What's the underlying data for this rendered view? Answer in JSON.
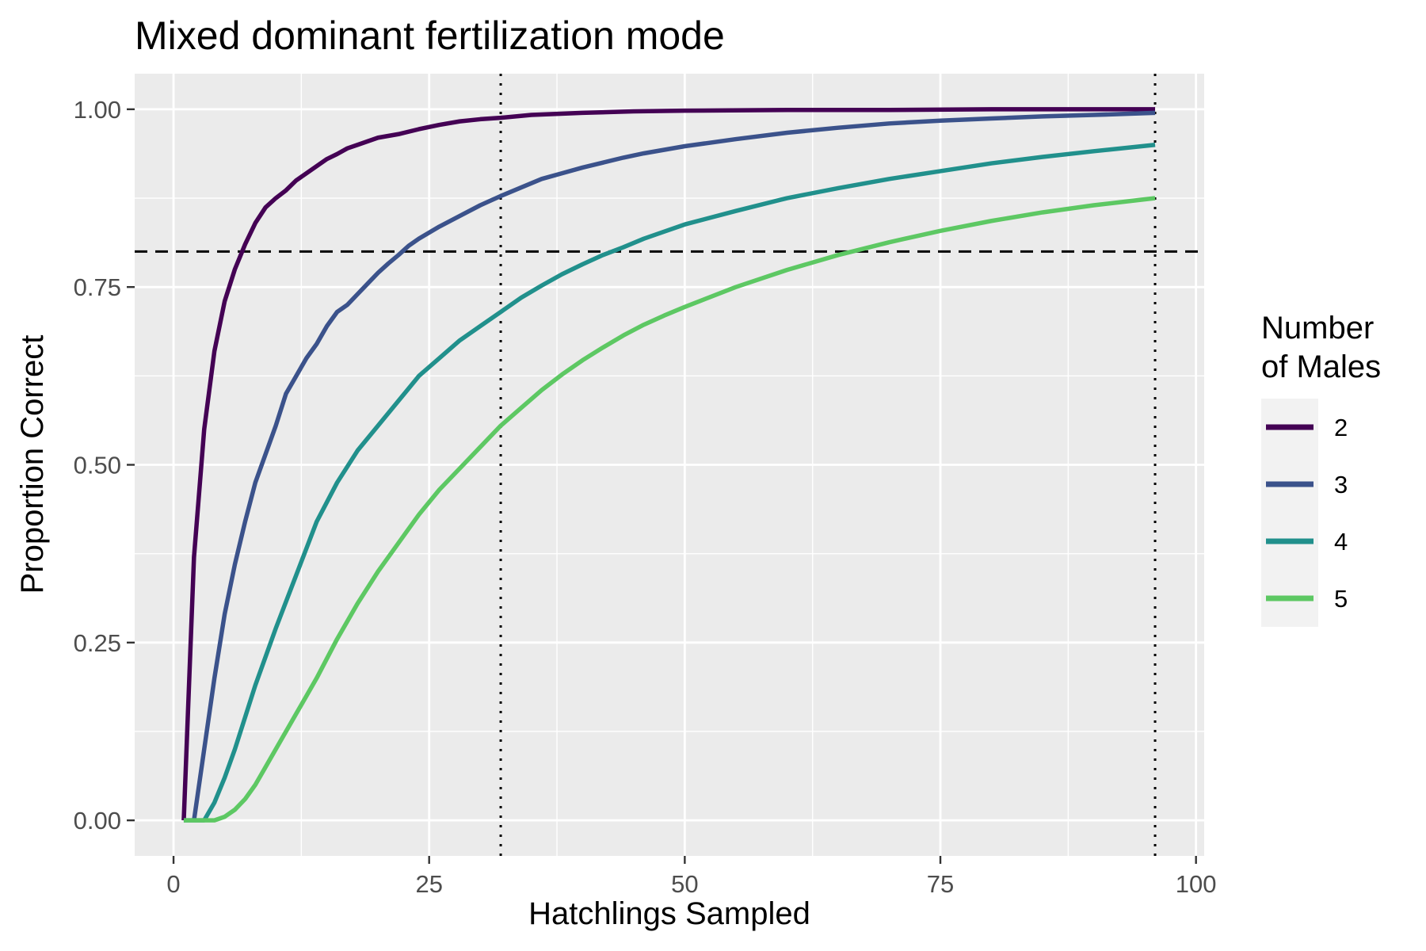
{
  "chart_data": {
    "type": "line",
    "title": "Mixed dominant fertilization mode",
    "xlabel": "Hatchlings Sampled",
    "ylabel": "Proportion Correct",
    "xlim": [
      -3.8,
      100.8
    ],
    "ylim": [
      -0.05,
      1.05
    ],
    "x_ticks": [
      0,
      25,
      50,
      75,
      100
    ],
    "x_tick_labels": [
      "0",
      "25",
      "50",
      "75",
      "100"
    ],
    "y_ticks": [
      0,
      0.25,
      0.5,
      0.75,
      1
    ],
    "y_tick_labels": [
      "0.00",
      "0.25",
      "0.50",
      "0.75",
      "1.00"
    ],
    "grid": true,
    "panel_background": "#ebebeb",
    "grid_color": "#ffffff",
    "reference_lines": [
      {
        "orientation": "horizontal",
        "value": 0.8,
        "style": "dashed"
      },
      {
        "orientation": "vertical",
        "value": 32,
        "style": "dotted"
      },
      {
        "orientation": "vertical",
        "value": 96,
        "style": "dotted"
      }
    ],
    "legend": {
      "title": "Number\n of Males",
      "placement": "right"
    },
    "series": [
      {
        "name": "2",
        "color": "#440154",
        "x": [
          1,
          2,
          3,
          4,
          5,
          6,
          7,
          8,
          9,
          10,
          11,
          12,
          13,
          14,
          15,
          16,
          17,
          18,
          19,
          20,
          22,
          24,
          26,
          28,
          30,
          32,
          35,
          40,
          45,
          50,
          60,
          70,
          80,
          96
        ],
        "y": [
          0.0,
          0.37,
          0.55,
          0.66,
          0.73,
          0.775,
          0.81,
          0.84,
          0.862,
          0.875,
          0.886,
          0.9,
          0.91,
          0.92,
          0.93,
          0.937,
          0.945,
          0.95,
          0.955,
          0.96,
          0.965,
          0.972,
          0.978,
          0.983,
          0.986,
          0.988,
          0.992,
          0.995,
          0.997,
          0.998,
          0.999,
          0.999,
          1.0,
          1.0
        ]
      },
      {
        "name": "3",
        "color": "#3b528b",
        "x": [
          2,
          3,
          4,
          5,
          6,
          7,
          8,
          9,
          10,
          11,
          12,
          13,
          14,
          15,
          16,
          17,
          18,
          19,
          20,
          21,
          22,
          23,
          24,
          26,
          28,
          30,
          32,
          34,
          36,
          38,
          40,
          42,
          44,
          46,
          48,
          50,
          55,
          60,
          65,
          70,
          75,
          80,
          85,
          90,
          96
        ],
        "y": [
          0.0,
          0.1,
          0.2,
          0.29,
          0.36,
          0.42,
          0.475,
          0.515,
          0.555,
          0.6,
          0.625,
          0.65,
          0.67,
          0.695,
          0.715,
          0.725,
          0.74,
          0.755,
          0.77,
          0.783,
          0.795,
          0.808,
          0.818,
          0.835,
          0.85,
          0.865,
          0.878,
          0.89,
          0.902,
          0.91,
          0.918,
          0.925,
          0.932,
          0.938,
          0.943,
          0.948,
          0.958,
          0.967,
          0.974,
          0.98,
          0.984,
          0.987,
          0.99,
          0.992,
          0.995
        ]
      },
      {
        "name": "4",
        "color": "#21908c",
        "x": [
          1,
          2,
          3,
          4,
          5,
          6,
          7,
          8,
          9,
          10,
          12,
          14,
          16,
          18,
          20,
          22,
          24,
          26,
          28,
          30,
          32,
          34,
          36,
          38,
          40,
          42,
          44,
          46,
          48,
          50,
          55,
          60,
          65,
          70,
          75,
          80,
          85,
          90,
          96
        ],
        "y": [
          0.0,
          0.0,
          0.0,
          0.025,
          0.06,
          0.1,
          0.145,
          0.19,
          0.23,
          0.27,
          0.345,
          0.42,
          0.475,
          0.52,
          0.555,
          0.59,
          0.625,
          0.65,
          0.675,
          0.695,
          0.715,
          0.735,
          0.752,
          0.768,
          0.782,
          0.795,
          0.806,
          0.818,
          0.828,
          0.838,
          0.857,
          0.875,
          0.889,
          0.902,
          0.913,
          0.924,
          0.933,
          0.941,
          0.95
        ]
      },
      {
        "name": "5",
        "color": "#5dc863",
        "x": [
          1,
          2,
          3,
          4,
          5,
          6,
          7,
          8,
          9,
          10,
          12,
          14,
          16,
          18,
          20,
          22,
          24,
          26,
          28,
          30,
          32,
          34,
          36,
          38,
          40,
          42,
          44,
          46,
          48,
          50,
          55,
          60,
          65,
          70,
          75,
          80,
          85,
          90,
          96
        ],
        "y": [
          0.0,
          0.0,
          0.0,
          0.0,
          0.005,
          0.015,
          0.03,
          0.05,
          0.075,
          0.1,
          0.15,
          0.2,
          0.255,
          0.305,
          0.35,
          0.39,
          0.43,
          0.465,
          0.495,
          0.525,
          0.555,
          0.58,
          0.605,
          0.627,
          0.647,
          0.665,
          0.682,
          0.697,
          0.71,
          0.722,
          0.75,
          0.774,
          0.795,
          0.813,
          0.829,
          0.843,
          0.855,
          0.865,
          0.875
        ]
      }
    ]
  }
}
